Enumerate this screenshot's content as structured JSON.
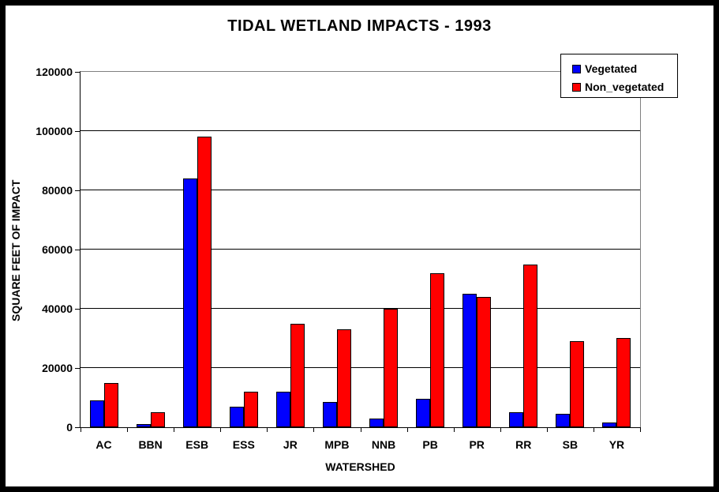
{
  "chart_data": {
    "type": "bar",
    "title": "TIDAL WETLAND IMPACTS - 1993",
    "xlabel": "WATERSHED",
    "ylabel": "SQUARE FEET OF IMPACT",
    "categories": [
      "AC",
      "BBN",
      "ESB",
      "ESS",
      "JR",
      "MPB",
      "NNB",
      "PB",
      "PR",
      "RR",
      "SB",
      "YR"
    ],
    "series": [
      {
        "name": "Vegetated",
        "color": "#0000ff",
        "values": [
          9000,
          1000,
          84000,
          7000,
          12000,
          8500,
          3000,
          9500,
          45000,
          5000,
          4500,
          1500
        ]
      },
      {
        "name": "Non_vegetated",
        "color": "#ff0000",
        "values": [
          15000,
          5000,
          98000,
          12000,
          35000,
          33000,
          40000,
          52000,
          44000,
          55000,
          29000,
          30000
        ]
      }
    ],
    "ylim": [
      0,
      120000
    ],
    "ytick_interval": 20000,
    "yticks": [
      "0",
      "20000",
      "40000",
      "60000",
      "80000",
      "100000",
      "120000"
    ],
    "grid": true,
    "legend_position": "top-right",
    "colors": {
      "plot_border": "#808080",
      "gridline": "#000000",
      "axis": "#000000",
      "background": "#ffffff",
      "outer_frame": "#000000"
    }
  }
}
